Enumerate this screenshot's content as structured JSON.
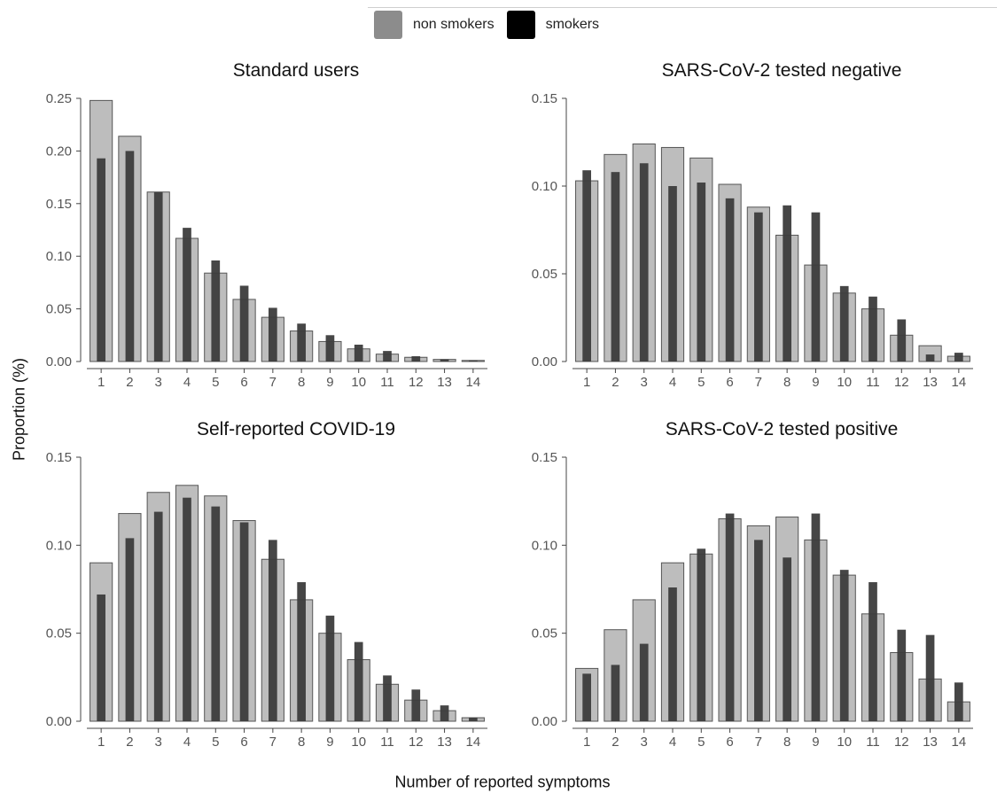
{
  "legend": {
    "items": [
      {
        "label": "non smokers",
        "color": "#8c8c8c"
      },
      {
        "label": "smokers",
        "color": "#000000"
      }
    ]
  },
  "ylabel": "Proportion (%)",
  "xlabel": "Number of reported symptoms",
  "colors": {
    "non_smokers_fill": "#bdbdbd",
    "non_smokers_stroke": "#555555",
    "smokers_fill": "#3c3c3c",
    "axis": "#444444",
    "tick_text": "#555555"
  },
  "chart_data": [
    {
      "type": "bar",
      "title": "Standard users",
      "categories": [
        "1",
        "2",
        "3",
        "4",
        "5",
        "6",
        "7",
        "8",
        "9",
        "10",
        "11",
        "12",
        "13",
        "14"
      ],
      "ylim": [
        0,
        0.25
      ],
      "yticks": [
        0.0,
        0.05,
        0.1,
        0.15,
        0.2,
        0.25
      ],
      "ytick_labels": [
        "0.00",
        "0.05",
        "0.10",
        "0.15",
        "0.20",
        "0.25"
      ],
      "series": [
        {
          "name": "non smokers",
          "values": [
            0.248,
            0.214,
            0.161,
            0.117,
            0.084,
            0.059,
            0.042,
            0.029,
            0.019,
            0.012,
            0.007,
            0.004,
            0.002,
            0.001
          ]
        },
        {
          "name": "smokers",
          "values": [
            0.193,
            0.2,
            0.161,
            0.127,
            0.096,
            0.072,
            0.051,
            0.036,
            0.025,
            0.016,
            0.01,
            0.005,
            0.002,
            0.001
          ]
        }
      ]
    },
    {
      "type": "bar",
      "title": "SARS-CoV-2 tested negative",
      "categories": [
        "1",
        "2",
        "3",
        "4",
        "5",
        "6",
        "7",
        "8",
        "9",
        "10",
        "11",
        "12",
        "13",
        "14"
      ],
      "ylim": [
        0,
        0.15
      ],
      "yticks": [
        0.0,
        0.05,
        0.1,
        0.15
      ],
      "ytick_labels": [
        "0.00",
        "0.05",
        "0.10",
        "0.15"
      ],
      "series": [
        {
          "name": "non smokers",
          "values": [
            0.103,
            0.118,
            0.124,
            0.122,
            0.116,
            0.101,
            0.088,
            0.072,
            0.055,
            0.039,
            0.03,
            0.015,
            0.009,
            0.003
          ]
        },
        {
          "name": "smokers",
          "values": [
            0.109,
            0.108,
            0.113,
            0.1,
            0.102,
            0.093,
            0.085,
            0.089,
            0.085,
            0.043,
            0.037,
            0.024,
            0.004,
            0.005
          ]
        }
      ]
    },
    {
      "type": "bar",
      "title": "Self-reported COVID-19",
      "categories": [
        "1",
        "2",
        "3",
        "4",
        "5",
        "6",
        "7",
        "8",
        "9",
        "10",
        "11",
        "12",
        "13",
        "14"
      ],
      "ylim": [
        0,
        0.15
      ],
      "yticks": [
        0.0,
        0.05,
        0.1,
        0.15
      ],
      "ytick_labels": [
        "0.00",
        "0.05",
        "0.10",
        "0.15"
      ],
      "series": [
        {
          "name": "non smokers",
          "values": [
            0.09,
            0.118,
            0.13,
            0.134,
            0.128,
            0.114,
            0.092,
            0.069,
            0.05,
            0.035,
            0.021,
            0.012,
            0.006,
            0.002
          ]
        },
        {
          "name": "smokers",
          "values": [
            0.072,
            0.104,
            0.119,
            0.127,
            0.122,
            0.113,
            0.103,
            0.079,
            0.06,
            0.045,
            0.026,
            0.018,
            0.009,
            0.002
          ]
        }
      ]
    },
    {
      "type": "bar",
      "title": "SARS-CoV-2 tested positive",
      "categories": [
        "1",
        "2",
        "3",
        "4",
        "5",
        "6",
        "7",
        "8",
        "9",
        "10",
        "11",
        "12",
        "13",
        "14"
      ],
      "ylim": [
        0,
        0.15
      ],
      "yticks": [
        0.0,
        0.05,
        0.1,
        0.15
      ],
      "ytick_labels": [
        "0.00",
        "0.05",
        "0.10",
        "0.15"
      ],
      "series": [
        {
          "name": "non smokers",
          "values": [
            0.03,
            0.052,
            0.069,
            0.09,
            0.095,
            0.115,
            0.111,
            0.116,
            0.103,
            0.083,
            0.061,
            0.039,
            0.024,
            0.011
          ]
        },
        {
          "name": "smokers",
          "values": [
            0.027,
            0.032,
            0.044,
            0.076,
            0.098,
            0.118,
            0.103,
            0.093,
            0.118,
            0.086,
            0.079,
            0.052,
            0.049,
            0.022
          ]
        }
      ]
    }
  ]
}
